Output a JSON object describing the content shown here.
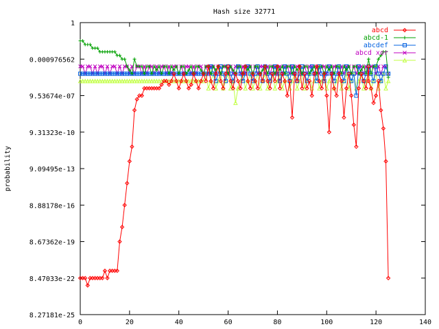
{
  "chart_data": {
    "type": "line",
    "title": "Hash size 32771",
    "xlabel": "",
    "ylabel": "probability",
    "xlim": [
      0,
      140
    ],
    "x_ticks": [
      "0",
      "20",
      "40",
      "60",
      "80",
      "100",
      "120",
      "140"
    ],
    "y_scale": "log2",
    "ylim_log2": [
      -80,
      0
    ],
    "y_ticks": [
      "1",
      "0.000976562",
      "9.53674e-07",
      "9.31323e-10",
      "9.09495e-13",
      "8.88178e-16",
      "8.67362e-19",
      "8.47033e-22",
      "8.27181e-25"
    ],
    "legend_position": "top-right",
    "grid": false,
    "series": [
      {
        "name": "abcd",
        "color": "#ff0000",
        "marker": "diamond",
        "x": [
          0,
          1,
          2,
          3,
          4,
          5,
          6,
          7,
          8,
          9,
          10,
          11,
          12,
          13,
          14,
          15,
          16,
          17,
          18,
          19,
          20,
          21,
          22,
          23,
          24,
          25,
          26,
          27,
          28,
          29,
          30,
          31,
          32,
          33,
          34,
          35,
          36,
          37,
          38,
          39,
          40,
          41,
          42,
          43,
          44,
          45,
          46,
          47,
          48,
          49,
          50,
          51,
          52,
          53,
          54,
          55,
          56,
          57,
          58,
          59,
          60,
          61,
          62,
          63,
          64,
          65,
          66,
          67,
          68,
          69,
          70,
          71,
          72,
          73,
          74,
          75,
          76,
          77,
          78,
          79,
          80,
          81,
          82,
          83,
          84,
          85,
          86,
          87,
          88,
          89,
          90,
          91,
          92,
          93,
          94,
          95,
          96,
          97,
          98,
          99,
          100,
          101,
          102,
          103,
          104,
          105,
          106,
          107,
          108,
          109,
          110,
          111,
          112,
          113,
          114,
          115,
          116,
          117,
          117,
          118,
          119,
          120,
          121,
          122,
          123,
          124,
          125
        ],
        "y_log2": [
          -70,
          -70,
          -70,
          -72,
          -70,
          -70,
          -70,
          -70,
          -70,
          -70,
          -68,
          -70,
          -68,
          -68,
          -68,
          -68,
          -60,
          -56,
          -50,
          -44,
          -38,
          -34,
          -24,
          -21,
          -20,
          -20,
          -18,
          -18,
          -18,
          -18,
          -18,
          -18,
          -18,
          -17,
          -16,
          -16,
          -17,
          -16,
          -14,
          -16,
          -18,
          -16,
          -14,
          -16,
          -18,
          -17,
          -14,
          -16,
          -18,
          -16,
          -14,
          -16,
          -12,
          -16,
          -18,
          -14,
          -12,
          -16,
          -18,
          -14,
          -12,
          -16,
          -18,
          -14,
          -16,
          -18,
          -14,
          -12,
          -16,
          -18,
          -14,
          -16,
          -18,
          -14,
          -16,
          -12,
          -16,
          -18,
          -14,
          -16,
          -12,
          -18,
          -14,
          -16,
          -20,
          -16,
          -26,
          -14,
          -16,
          -12,
          -18,
          -14,
          -18,
          -16,
          -20,
          -14,
          -12,
          -16,
          -18,
          -14,
          -20,
          -30,
          -14,
          -18,
          -20,
          -14,
          -16,
          -26,
          -18,
          -14,
          -20,
          -28,
          -34,
          -18,
          -14,
          -16,
          -18,
          -12,
          -16,
          -18,
          -22,
          -20,
          -16,
          -24,
          -29,
          -38,
          -70
        ],
        "smooth_note": ""
      },
      {
        "name": "abcd-1",
        "color": "#00a000",
        "marker": "plus",
        "x": [
          0,
          1,
          2,
          3,
          4,
          5,
          6,
          7,
          8,
          9,
          10,
          11,
          12,
          13,
          14,
          15,
          16,
          17,
          18,
          19,
          20,
          21,
          22,
          23,
          24,
          25,
          26,
          27,
          28,
          29,
          30,
          31,
          32,
          33,
          34,
          35,
          36,
          37,
          38,
          39,
          40,
          41,
          42,
          43,
          44,
          45,
          46,
          47,
          48,
          49,
          50,
          51,
          52,
          53,
          54,
          55,
          56,
          57,
          58,
          59,
          60,
          61,
          62,
          63,
          64,
          65,
          66,
          67,
          68,
          69,
          70,
          71,
          72,
          73,
          74,
          75,
          76,
          77,
          78,
          79,
          80,
          81,
          82,
          83,
          84,
          85,
          86,
          87,
          88,
          89,
          90,
          91,
          92,
          93,
          94,
          95,
          96,
          97,
          98,
          99,
          100,
          101,
          102,
          103,
          104,
          105,
          106,
          107,
          108,
          109,
          110,
          111,
          112,
          113,
          114,
          115,
          116,
          117,
          118,
          119,
          120,
          121,
          122,
          123,
          124,
          125
        ],
        "y_log2": [
          -5,
          -5,
          -6,
          -6,
          -6,
          -7,
          -7,
          -7,
          -8,
          -8,
          -8,
          -8,
          -8,
          -8,
          -8,
          -9,
          -9,
          -10,
          -10,
          -12,
          -13,
          -14,
          -10,
          -12,
          -12,
          -12,
          -14,
          -12,
          -12,
          -14,
          -12,
          -13,
          -12,
          -14,
          -12,
          -12,
          -14,
          -12,
          -13,
          -12,
          -14,
          -12,
          -12,
          -14,
          -13,
          -12,
          -14,
          -12,
          -12,
          -13,
          -14,
          -12,
          -12,
          -14,
          -12,
          -13,
          -12,
          -14,
          -12,
          -12,
          -14,
          -12,
          -13,
          -14,
          -12,
          -12,
          -14,
          -12,
          -13,
          -12,
          -14,
          -12,
          -12,
          -14,
          -13,
          -12,
          -14,
          -12,
          -12,
          -14,
          -12,
          -13,
          -12,
          -14,
          -12,
          -12,
          -14,
          -12,
          -13,
          -12,
          -14,
          -12,
          -12,
          -14,
          -13,
          -12,
          -14,
          -12,
          -12,
          -14,
          -12,
          -13,
          -12,
          -14,
          -12,
          -12,
          -14,
          -12,
          -13,
          -12,
          -14,
          -12,
          -12,
          -14,
          -13,
          -12,
          -14,
          -10,
          -14,
          -12,
          -12,
          -10,
          -9,
          -8,
          -8,
          -15
        ]
      },
      {
        "name": "abcdef",
        "color": "#0060e0",
        "marker": "square",
        "x": [
          0,
          1,
          2,
          3,
          4,
          5,
          6,
          7,
          8,
          9,
          10,
          11,
          12,
          13,
          14,
          15,
          16,
          17,
          18,
          19,
          20,
          21,
          22,
          23,
          24,
          25,
          26,
          27,
          28,
          29,
          30,
          31,
          32,
          33,
          34,
          35,
          36,
          37,
          38,
          39,
          40,
          41,
          42,
          43,
          44,
          45,
          46,
          47,
          48,
          49,
          50,
          51,
          52,
          53,
          54,
          55,
          56,
          57,
          58,
          59,
          60,
          61,
          62,
          63,
          64,
          65,
          66,
          67,
          68,
          69,
          70,
          71,
          72,
          73,
          74,
          75,
          76,
          77,
          78,
          79,
          80,
          81,
          82,
          83,
          84,
          85,
          86,
          87,
          88,
          89,
          90,
          91,
          92,
          93,
          94,
          95,
          96,
          97,
          98,
          99,
          100,
          101,
          102,
          103,
          104,
          105,
          106,
          107,
          108,
          109,
          110,
          111,
          112,
          113,
          114,
          115,
          116,
          117,
          118,
          119,
          120,
          121,
          122,
          123,
          124,
          125
        ],
        "y_log2": [
          -14,
          -14,
          -14,
          -14,
          -14,
          -14,
          -14,
          -14,
          -14,
          -14,
          -14,
          -14,
          -14,
          -14,
          -14,
          -14,
          -14,
          -14,
          -14,
          -14,
          -14,
          -14,
          -14,
          -14,
          -14,
          -14,
          -14,
          -14,
          -14,
          -14,
          -14,
          -14,
          -14,
          -14,
          -14,
          -14,
          -14,
          -14,
          -14,
          -14,
          -14,
          -14,
          -14,
          -14,
          -14,
          -14,
          -14,
          -14,
          -14,
          -14,
          -14,
          -14,
          -14,
          -12,
          -14,
          -16,
          -14,
          -12,
          -14,
          -16,
          -12,
          -14,
          -16,
          -14,
          -12,
          -14,
          -16,
          -14,
          -12,
          -14,
          -16,
          -14,
          -12,
          -14,
          -16,
          -12,
          -14,
          -16,
          -14,
          -12,
          -14,
          -16,
          -14,
          -12,
          -14,
          -16,
          -12,
          -14,
          -16,
          -14,
          -12,
          -14,
          -16,
          -14,
          -12,
          -14,
          -16,
          -12,
          -14,
          -16,
          -14,
          -12,
          -14,
          -16,
          -14,
          -12,
          -14,
          -16,
          -12,
          -14,
          -16,
          -14,
          -20,
          -12,
          -14,
          -16,
          -14,
          -12,
          -14,
          -16,
          -12,
          -14,
          -16,
          -14,
          -12,
          -14
        ]
      },
      {
        "name": "abcd xor",
        "color": "#c000c0",
        "marker": "cross",
        "x": [
          0,
          1,
          2,
          3,
          4,
          5,
          6,
          7,
          8,
          9,
          10,
          11,
          12,
          13,
          14,
          15,
          16,
          17,
          18,
          19,
          20,
          21,
          22,
          23,
          24,
          25,
          26,
          27,
          28,
          29,
          30,
          31,
          32,
          33,
          34,
          35,
          36,
          37,
          38,
          39,
          40,
          41,
          42,
          43,
          44,
          45,
          46,
          47,
          48,
          49,
          50,
          51,
          52,
          53,
          54,
          55,
          56,
          57,
          58,
          59,
          60,
          61,
          62,
          63,
          64,
          65,
          66,
          67,
          68,
          69,
          70,
          71,
          72,
          73,
          74,
          75,
          76,
          77,
          78,
          79,
          80,
          81,
          82,
          83,
          84,
          85,
          86,
          87,
          88,
          89,
          90,
          91,
          92,
          93,
          94,
          95,
          96,
          97,
          98,
          99,
          100,
          101,
          102,
          103,
          104,
          105,
          106,
          107,
          108,
          109,
          110,
          111,
          112,
          113,
          114,
          115,
          116,
          117,
          118,
          119,
          120,
          121,
          122,
          123,
          124,
          125
        ],
        "y_log2": [
          -12,
          -12,
          -14,
          -12,
          -12,
          -14,
          -12,
          -14,
          -12,
          -12,
          -14,
          -12,
          -14,
          -12,
          -12,
          -14,
          -12,
          -14,
          -12,
          -12,
          -14,
          -12,
          -14,
          -12,
          -12,
          -14,
          -12,
          -14,
          -12,
          -12,
          -14,
          -12,
          -14,
          -12,
          -12,
          -14,
          -12,
          -14,
          -12,
          -12,
          -14,
          -12,
          -14,
          -12,
          -12,
          -14,
          -12,
          -14,
          -12,
          -12,
          -14,
          -12,
          -14,
          -12,
          -12,
          -14,
          -12,
          -14,
          -12,
          -12,
          -14,
          -12,
          -14,
          -12,
          -12,
          -14,
          -12,
          -14,
          -12,
          -12,
          -14,
          -12,
          -14,
          -12,
          -12,
          -14,
          -12,
          -14,
          -12,
          -12,
          -14,
          -12,
          -14,
          -12,
          -12,
          -14,
          -12,
          -14,
          -12,
          -12,
          -14,
          -12,
          -14,
          -12,
          -12,
          -14,
          -12,
          -14,
          -12,
          -12,
          -14,
          -12,
          -14,
          -12,
          -12,
          -14,
          -12,
          -14,
          -12,
          -12,
          -14,
          -12,
          -14,
          -12,
          -12,
          -14,
          -12,
          -14,
          -12,
          -12,
          -14,
          -12,
          -14,
          -12,
          -12,
          -14
        ]
      },
      {
        "name": "",
        "color": "#c0ff40",
        "marker": "triangle",
        "x": [
          0,
          1,
          2,
          3,
          4,
          5,
          6,
          7,
          8,
          9,
          10,
          11,
          12,
          13,
          14,
          15,
          16,
          17,
          18,
          19,
          20,
          21,
          22,
          23,
          24,
          25,
          26,
          27,
          28,
          29,
          30,
          31,
          32,
          33,
          34,
          35,
          36,
          37,
          38,
          39,
          40,
          41,
          42,
          43,
          44,
          45,
          46,
          47,
          48,
          49,
          50,
          51,
          52,
          53,
          54,
          55,
          56,
          57,
          58,
          59,
          60,
          61,
          62,
          63,
          64,
          65,
          66,
          67,
          68,
          69,
          70,
          71,
          72,
          73,
          74,
          75,
          76,
          77,
          78,
          79,
          80,
          81,
          82,
          83,
          84,
          85,
          86,
          87,
          88,
          89,
          90,
          91,
          92,
          93,
          94,
          95,
          96,
          97,
          98,
          99,
          100,
          101,
          102,
          103,
          104,
          105,
          106,
          107,
          108,
          109,
          110,
          111,
          112,
          113,
          114,
          115,
          116,
          117,
          118,
          119,
          120,
          121,
          122,
          123,
          124,
          125
        ],
        "y_log2": [
          -16,
          -16,
          -16,
          -16,
          -16,
          -16,
          -16,
          -16,
          -16,
          -16,
          -16,
          -16,
          -16,
          -16,
          -16,
          -16,
          -16,
          -16,
          -16,
          -16,
          -16,
          -16,
          -16,
          -16,
          -16,
          -16,
          -16,
          -16,
          -16,
          -16,
          -16,
          -16,
          -16,
          -16,
          -16,
          -16,
          -16,
          -16,
          -16,
          -16,
          -16,
          -16,
          -16,
          -16,
          -16,
          -16,
          -16,
          -16,
          -16,
          -16,
          -16,
          -14,
          -18,
          -16,
          -14,
          -18,
          -16,
          -14,
          -18,
          -16,
          -14,
          -18,
          -16,
          -22,
          -18,
          -16,
          -14,
          -18,
          -16,
          -14,
          -18,
          -16,
          -14,
          -18,
          -16,
          -14,
          -18,
          -16,
          -14,
          -18,
          -16,
          -14,
          -18,
          -16,
          -14,
          -18,
          -16,
          -14,
          -18,
          -16,
          -14,
          -18,
          -16,
          -14,
          -18,
          -16,
          -14,
          -18,
          -16,
          -14,
          -18,
          -16,
          -14,
          -18,
          -16,
          -14,
          -18,
          -16,
          -14,
          -18,
          -16,
          -14,
          -18,
          -16,
          -14,
          -18,
          -16,
          -14,
          -18,
          -16,
          -14,
          -18,
          -16,
          -14,
          -18,
          -16
        ]
      }
    ]
  }
}
